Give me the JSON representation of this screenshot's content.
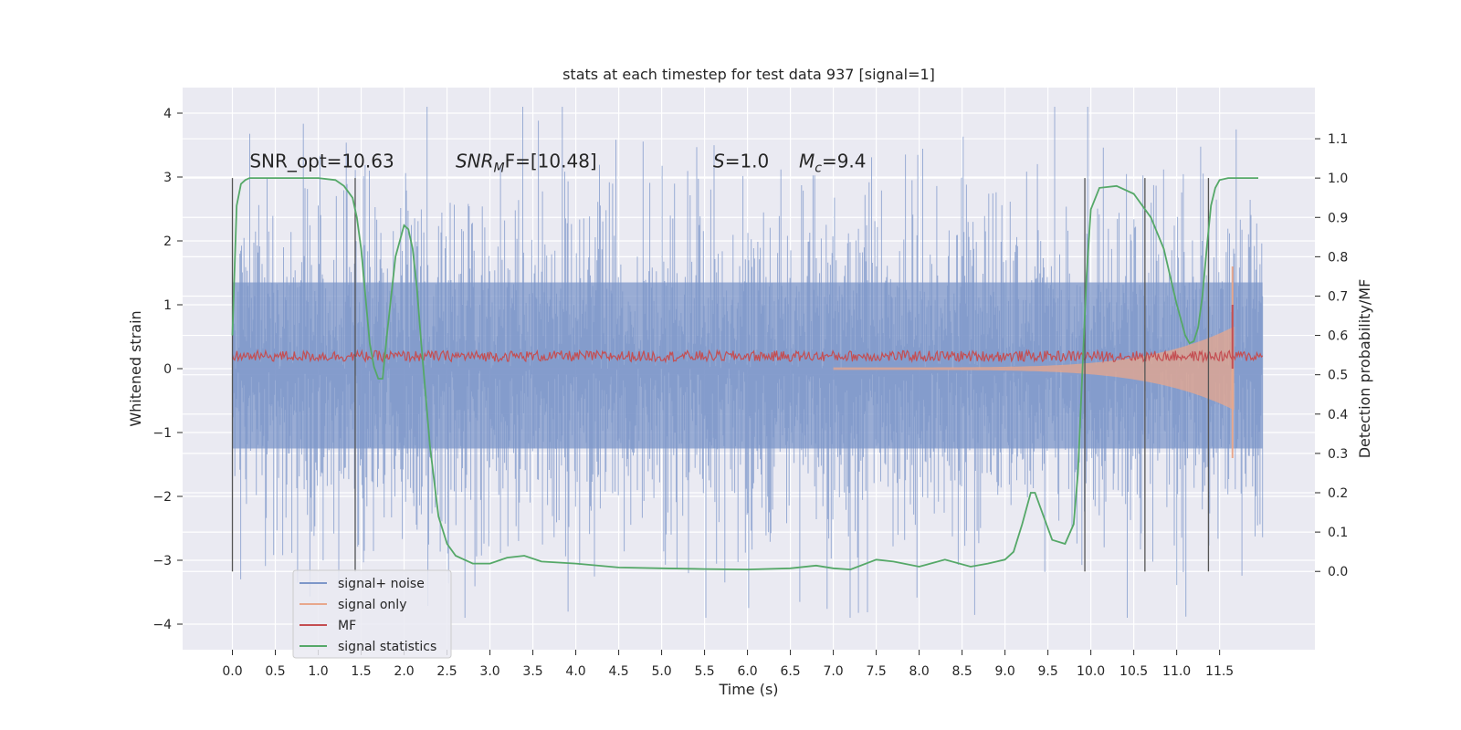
{
  "chart_data": {
    "type": "line",
    "title": "stats at each timestep for test data 937 [signal=1]",
    "xlabel": "Time (s)",
    "ylabel_left": "Whitened strain",
    "ylabel_right": "Detection probability/MF",
    "xlim": [
      -0.58,
      12.61
    ],
    "ylim_left": [
      -4.4,
      4.4
    ],
    "ylim_right": [
      -0.199,
      1.23
    ],
    "x_ticks": [
      0.0,
      0.5,
      1.0,
      1.5,
      2.0,
      2.5,
      3.0,
      3.5,
      4.0,
      4.5,
      5.0,
      5.5,
      6.0,
      6.5,
      7.0,
      7.5,
      8.0,
      8.5,
      9.0,
      9.5,
      10.0,
      10.5,
      11.0,
      11.5
    ],
    "x_tick_labels": [
      "0.0",
      "0.5",
      "1.0",
      "1.5",
      "2.0",
      "2.5",
      "3.0",
      "3.5",
      "4.0",
      "4.5",
      "5.0",
      "5.5",
      "6.0",
      "6.5",
      "7.0",
      "7.5",
      "8.0",
      "8.5",
      "9.0",
      "9.5",
      "10.0",
      "10.5",
      "11.0",
      "11.5"
    ],
    "y_left_ticks": [
      -4,
      -3,
      -2,
      -1,
      0,
      1,
      2,
      3,
      4
    ],
    "y_left_tick_labels": [
      "−4",
      "−3",
      "−2",
      "−1",
      "0",
      "1",
      "2",
      "3",
      "4"
    ],
    "y_right_ticks": [
      0.0,
      0.1,
      0.2,
      0.3,
      0.4,
      0.5,
      0.6,
      0.7,
      0.8,
      0.9,
      1.0,
      1.1
    ],
    "y_right_tick_labels": [
      "0.0",
      "0.1",
      "0.2",
      "0.3",
      "0.4",
      "0.5",
      "0.6",
      "0.7",
      "0.8",
      "0.9",
      "1.0",
      "1.1"
    ],
    "grid": true,
    "legend_position": "lower-left",
    "annotations": [
      {
        "id": "snr-opt",
        "text": "SNR_opt=10.63",
        "x": 0.2
      },
      {
        "id": "snr-mf",
        "text": "SNR",
        "sub": "M",
        "suffix": "F=[10.48]",
        "x": 2.6,
        "italic_main": true
      },
      {
        "id": "s-value",
        "text": "S",
        "suffix": "=1.0",
        "x": 5.6,
        "italic_main": true
      },
      {
        "id": "mc-value",
        "text": "M",
        "sub": "c",
        "suffix": "=9.4",
        "x": 6.6,
        "italic_main": true
      }
    ],
    "annotation_y": 3.15,
    "noise_params": {
      "t_start": 0.0,
      "t_end": 12.0,
      "samples": 1250,
      "std": 1.15,
      "ymin": -3.9,
      "ymax": 4.1
    },
    "signal_only": {
      "t_start": 7.0,
      "t_end": 11.67,
      "final_max": 1.6,
      "final_min": -1.4
    },
    "mf_band": {
      "t_start": 0.0,
      "t_end": 12.0,
      "low": 0.02,
      "high": 0.28
    },
    "vertical_markers": [
      0.0,
      1.43,
      9.93,
      10.63,
      11.37
    ],
    "series": [
      {
        "name": "signal+ noise",
        "color": "#7d97c9",
        "axis": "left"
      },
      {
        "name": "signal only",
        "color": "#dd8452",
        "axis": "left"
      },
      {
        "name": "MF",
        "color": "#c44e52",
        "axis": "left"
      },
      {
        "name": "signal statistics",
        "color": "#55a868",
        "axis": "right",
        "x": [
          0.0,
          0.05,
          0.1,
          0.15,
          0.2,
          0.3,
          0.5,
          0.8,
          1.0,
          1.2,
          1.3,
          1.4,
          1.45,
          1.5,
          1.55,
          1.6,
          1.65,
          1.7,
          1.75,
          1.8,
          1.9,
          2.0,
          2.05,
          2.1,
          2.15,
          2.2,
          2.25,
          2.3,
          2.4,
          2.5,
          2.6,
          2.8,
          3.0,
          3.2,
          3.4,
          3.6,
          4.0,
          4.5,
          5.0,
          5.5,
          6.0,
          6.5,
          6.8,
          7.0,
          7.2,
          7.5,
          7.7,
          8.0,
          8.3,
          8.6,
          8.8,
          9.0,
          9.1,
          9.2,
          9.3,
          9.35,
          9.45,
          9.55,
          9.7,
          9.8,
          9.85,
          9.9,
          9.95,
          10.0,
          10.1,
          10.3,
          10.5,
          10.7,
          10.85,
          11.0,
          11.1,
          11.15,
          11.2,
          11.25,
          11.3,
          11.35,
          11.4,
          11.45,
          11.5,
          11.6,
          11.7,
          11.95
        ],
        "y": [
          0.6,
          0.93,
          0.985,
          0.995,
          1.0,
          1.0,
          1.0,
          1.0,
          1.0,
          0.995,
          0.98,
          0.95,
          0.9,
          0.82,
          0.7,
          0.58,
          0.52,
          0.49,
          0.49,
          0.6,
          0.8,
          0.88,
          0.87,
          0.82,
          0.72,
          0.58,
          0.45,
          0.32,
          0.14,
          0.07,
          0.04,
          0.02,
          0.02,
          0.035,
          0.04,
          0.025,
          0.02,
          0.01,
          0.008,
          0.006,
          0.005,
          0.008,
          0.015,
          0.008,
          0.005,
          0.03,
          0.025,
          0.012,
          0.03,
          0.012,
          0.02,
          0.03,
          0.05,
          0.12,
          0.2,
          0.2,
          0.14,
          0.08,
          0.07,
          0.12,
          0.25,
          0.5,
          0.75,
          0.92,
          0.975,
          0.98,
          0.96,
          0.9,
          0.82,
          0.68,
          0.6,
          0.58,
          0.585,
          0.62,
          0.7,
          0.82,
          0.93,
          0.975,
          0.995,
          1.0,
          1.0,
          1.0
        ]
      }
    ]
  }
}
